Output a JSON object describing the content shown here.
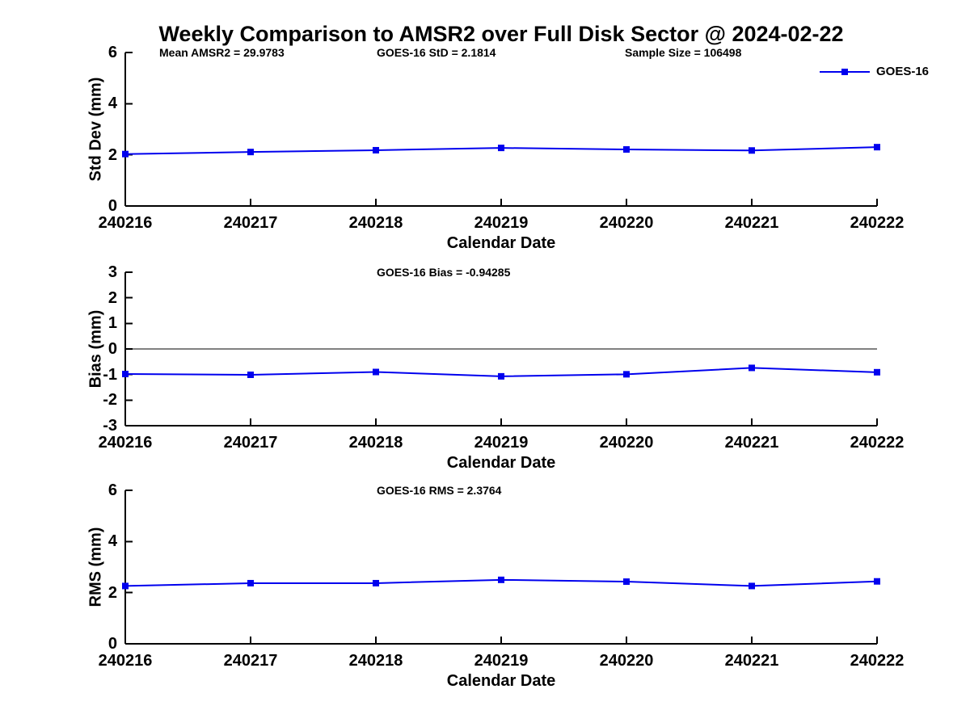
{
  "title": "Weekly Comparison to AMSR2 over Full Disk Sector @ 2024-02-22",
  "legend": {
    "label": "GOES-16",
    "position": "top-right-outside"
  },
  "colors": {
    "line": "#0000EE",
    "axis": "#000000",
    "zero_line": "#000000",
    "text": "#000000",
    "background": "#FFFFFF"
  },
  "chart_data": [
    {
      "type": "line",
      "name": "std-dev",
      "annotations": [
        "Mean AMSR2 = 29.9783",
        "GOES-16 StD = 2.1814",
        "Sample Size = 106498"
      ],
      "categories": [
        "240216",
        "240217",
        "240218",
        "240219",
        "240220",
        "240221",
        "240222"
      ],
      "series": [
        {
          "name": "GOES-16",
          "values": [
            2.03,
            2.11,
            2.18,
            2.27,
            2.21,
            2.17,
            2.3
          ]
        }
      ],
      "xlabel": "Calendar Date",
      "ylabel": "Std Dev (mm)",
      "ylim": [
        0,
        6
      ],
      "yticks": [
        0,
        2,
        4,
        6
      ],
      "zero_line": false,
      "grid": false,
      "marker": "square"
    },
    {
      "type": "line",
      "name": "bias",
      "annotations": [
        "GOES-16 Bias  = -0.94285"
      ],
      "categories": [
        "240216",
        "240217",
        "240218",
        "240219",
        "240220",
        "240221",
        "240222"
      ],
      "series": [
        {
          "name": "GOES-16",
          "values": [
            -0.98,
            -1.01,
            -0.9,
            -1.07,
            -0.99,
            -0.74,
            -0.91
          ]
        }
      ],
      "xlabel": "Calendar Date",
      "ylabel": "Bias (mm)",
      "ylim": [
        -3,
        3
      ],
      "yticks": [
        3,
        2,
        1,
        0,
        -1,
        -2,
        -3
      ],
      "zero_line": true,
      "grid": false,
      "marker": "square"
    },
    {
      "type": "line",
      "name": "rms",
      "annotations": [
        "GOES-16 RMS = 2.3764"
      ],
      "categories": [
        "240216",
        "240217",
        "240218",
        "240219",
        "240220",
        "240221",
        "240222"
      ],
      "series": [
        {
          "name": "GOES-16",
          "values": [
            2.26,
            2.37,
            2.37,
            2.5,
            2.43,
            2.26,
            2.44
          ]
        }
      ],
      "xlabel": "Calendar Date",
      "ylabel": "RMS (mm)",
      "ylim": [
        0,
        6
      ],
      "yticks": [
        0,
        2,
        4,
        6
      ],
      "zero_line": false,
      "grid": false,
      "marker": "square"
    }
  ]
}
